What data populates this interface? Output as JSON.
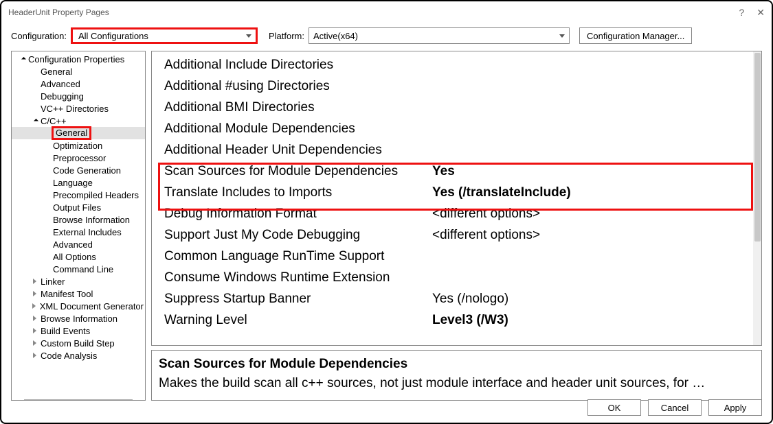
{
  "window": {
    "title": "HeaderUnit Property Pages"
  },
  "toolbar": {
    "config_label": "Configuration:",
    "config_value": "All Configurations",
    "platform_label": "Platform:",
    "platform_value": "Active(x64)",
    "cfg_mgr": "Configuration Manager..."
  },
  "tree": {
    "items": [
      {
        "label": "Configuration Properties",
        "lvl": 0,
        "caret": "expanded"
      },
      {
        "label": "General",
        "lvl": 1,
        "caret": "none"
      },
      {
        "label": "Advanced",
        "lvl": 1,
        "caret": "none"
      },
      {
        "label": "Debugging",
        "lvl": 1,
        "caret": "none"
      },
      {
        "label": "VC++ Directories",
        "lvl": 1,
        "caret": "none"
      },
      {
        "label": "C/C++",
        "lvl": 1,
        "caret": "expanded"
      },
      {
        "label": "General",
        "lvl": 2,
        "caret": "none",
        "selected": true
      },
      {
        "label": "Optimization",
        "lvl": 2,
        "caret": "none"
      },
      {
        "label": "Preprocessor",
        "lvl": 2,
        "caret": "none"
      },
      {
        "label": "Code Generation",
        "lvl": 2,
        "caret": "none"
      },
      {
        "label": "Language",
        "lvl": 2,
        "caret": "none"
      },
      {
        "label": "Precompiled Headers",
        "lvl": 2,
        "caret": "none"
      },
      {
        "label": "Output Files",
        "lvl": 2,
        "caret": "none"
      },
      {
        "label": "Browse Information",
        "lvl": 2,
        "caret": "none"
      },
      {
        "label": "External Includes",
        "lvl": 2,
        "caret": "none"
      },
      {
        "label": "Advanced",
        "lvl": 2,
        "caret": "none"
      },
      {
        "label": "All Options",
        "lvl": 2,
        "caret": "none"
      },
      {
        "label": "Command Line",
        "lvl": 2,
        "caret": "none"
      },
      {
        "label": "Linker",
        "lvl": 1,
        "caret": "collapsed"
      },
      {
        "label": "Manifest Tool",
        "lvl": 1,
        "caret": "collapsed"
      },
      {
        "label": "XML Document Generator",
        "lvl": 1,
        "caret": "collapsed"
      },
      {
        "label": "Browse Information",
        "lvl": 1,
        "caret": "collapsed"
      },
      {
        "label": "Build Events",
        "lvl": 1,
        "caret": "collapsed"
      },
      {
        "label": "Custom Build Step",
        "lvl": 1,
        "caret": "collapsed"
      },
      {
        "label": "Code Analysis",
        "lvl": 1,
        "caret": "collapsed"
      }
    ]
  },
  "props": {
    "rows": [
      {
        "name": "Additional Include Directories",
        "val": "",
        "bold": false
      },
      {
        "name": "Additional #using Directories",
        "val": "",
        "bold": false
      },
      {
        "name": "Additional BMI Directories",
        "val": "",
        "bold": false
      },
      {
        "name": "Additional Module Dependencies",
        "val": "",
        "bold": false
      },
      {
        "name": "Additional Header Unit Dependencies",
        "val": "",
        "bold": false
      },
      {
        "name": "Scan Sources for Module Dependencies",
        "val": "Yes",
        "bold": true
      },
      {
        "name": "Translate Includes to Imports",
        "val": "Yes (/translateInclude)",
        "bold": true
      },
      {
        "name": "Debug Information Format",
        "val": "<different options>",
        "bold": false
      },
      {
        "name": "Support Just My Code Debugging",
        "val": "<different options>",
        "bold": false
      },
      {
        "name": "Common Language RunTime Support",
        "val": "",
        "bold": false
      },
      {
        "name": "Consume Windows Runtime Extension",
        "val": "",
        "bold": false
      },
      {
        "name": "Suppress Startup Banner",
        "val": "Yes (/nologo)",
        "bold": false
      },
      {
        "name": "Warning Level",
        "val": "Level3 (/W3)",
        "bold": true
      }
    ]
  },
  "desc": {
    "title": "Scan Sources for Module Dependencies",
    "body": "Makes the build scan all c++ sources, not just module interface and header unit sources, for …"
  },
  "footer": {
    "ok": "OK",
    "cancel": "Cancel",
    "apply": "Apply"
  },
  "highlight": {
    "color": "#e11",
    "width": 3
  }
}
